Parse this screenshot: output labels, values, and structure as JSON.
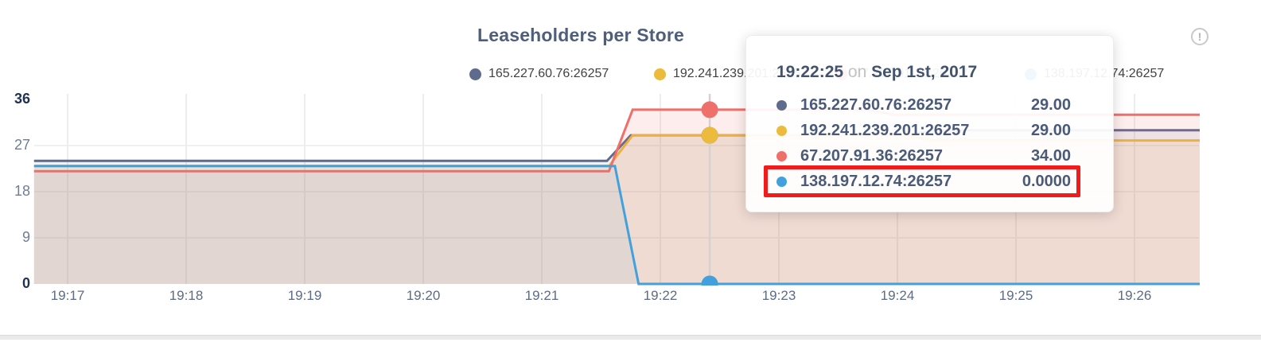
{
  "header": {
    "title": "Leaseholders per Store"
  },
  "info_icon": {
    "glyph": "!"
  },
  "legend": {
    "items": [
      {
        "label": "165.227.60.76:26257",
        "color": "#5e6b8c"
      },
      {
        "label": "192.241.239.201:26257",
        "color": "#ecba3c"
      },
      {
        "label": "67.207.91.36:26257",
        "color": "#ef6f6b"
      },
      {
        "label": "138.197.12.74:26257",
        "color": "#42a1dc"
      }
    ]
  },
  "tooltip": {
    "time": "19:22:25",
    "separator": "on",
    "date": "Sep 1st, 2017",
    "rows": [
      {
        "label": "165.227.60.76:26257",
        "value": "29.00",
        "color": "#5e6b8c",
        "highlighted": false
      },
      {
        "label": "192.241.239.201:26257",
        "value": "29.00",
        "color": "#ecba3c",
        "highlighted": false
      },
      {
        "label": "67.207.91.36:26257",
        "value": "34.00",
        "color": "#ef6f6b",
        "highlighted": false
      },
      {
        "label": "138.197.12.74:26257",
        "value": "0.0000",
        "color": "#42a1dc",
        "highlighted": true
      }
    ],
    "highlight_color": "#f11b1b"
  },
  "chart_data": {
    "type": "area",
    "title": "Leaseholders per Store",
    "x_ticks": [
      "19:17",
      "19:18",
      "19:19",
      "19:20",
      "19:21",
      "19:22",
      "19:23",
      "19:24",
      "19:25",
      "19:26"
    ],
    "y_ticks": [
      36,
      27,
      18,
      9,
      0
    ],
    "ylim": [
      0,
      36
    ],
    "x_range": [
      "19:16:43",
      "19:26:33"
    ],
    "grid": true,
    "legend_position": "top",
    "series": [
      {
        "name": "165.227.60.76:26257",
        "color": "#5e6b8c",
        "fill_opacity": 0.09,
        "points": [
          [
            "19:16:43",
            24
          ],
          [
            "19:21:33",
            24
          ],
          [
            "19:21:45",
            29
          ],
          [
            "19:24:05",
            29
          ],
          [
            "19:24:18",
            30
          ],
          [
            "19:26:33",
            30
          ]
        ]
      },
      {
        "name": "192.241.239.201:26257",
        "color": "#ecba3c",
        "fill_opacity": 0.11,
        "points": [
          [
            "19:16:43",
            23
          ],
          [
            "19:21:34",
            23
          ],
          [
            "19:21:46",
            29
          ],
          [
            "19:24:05",
            29
          ],
          [
            "19:24:18",
            28
          ],
          [
            "19:26:33",
            28
          ]
        ]
      },
      {
        "name": "67.207.91.36:26257",
        "color": "#ef6f6b",
        "fill_opacity": 0.12,
        "points": [
          [
            "19:16:43",
            22
          ],
          [
            "19:21:34",
            22
          ],
          [
            "19:21:46",
            34
          ],
          [
            "19:23:45",
            34
          ],
          [
            "19:23:58",
            33
          ],
          [
            "19:26:33",
            33
          ]
        ]
      },
      {
        "name": "138.197.12.74:26257",
        "color": "#42a1dc",
        "fill_opacity": 0.08,
        "points": [
          [
            "19:16:43",
            23
          ],
          [
            "19:21:37",
            23
          ],
          [
            "19:21:49",
            0
          ],
          [
            "19:26:33",
            0
          ]
        ]
      }
    ],
    "hover": {
      "time": "19:22:25",
      "line_color": "#d2d2d2",
      "values": [
        29,
        29,
        34,
        0
      ]
    }
  }
}
